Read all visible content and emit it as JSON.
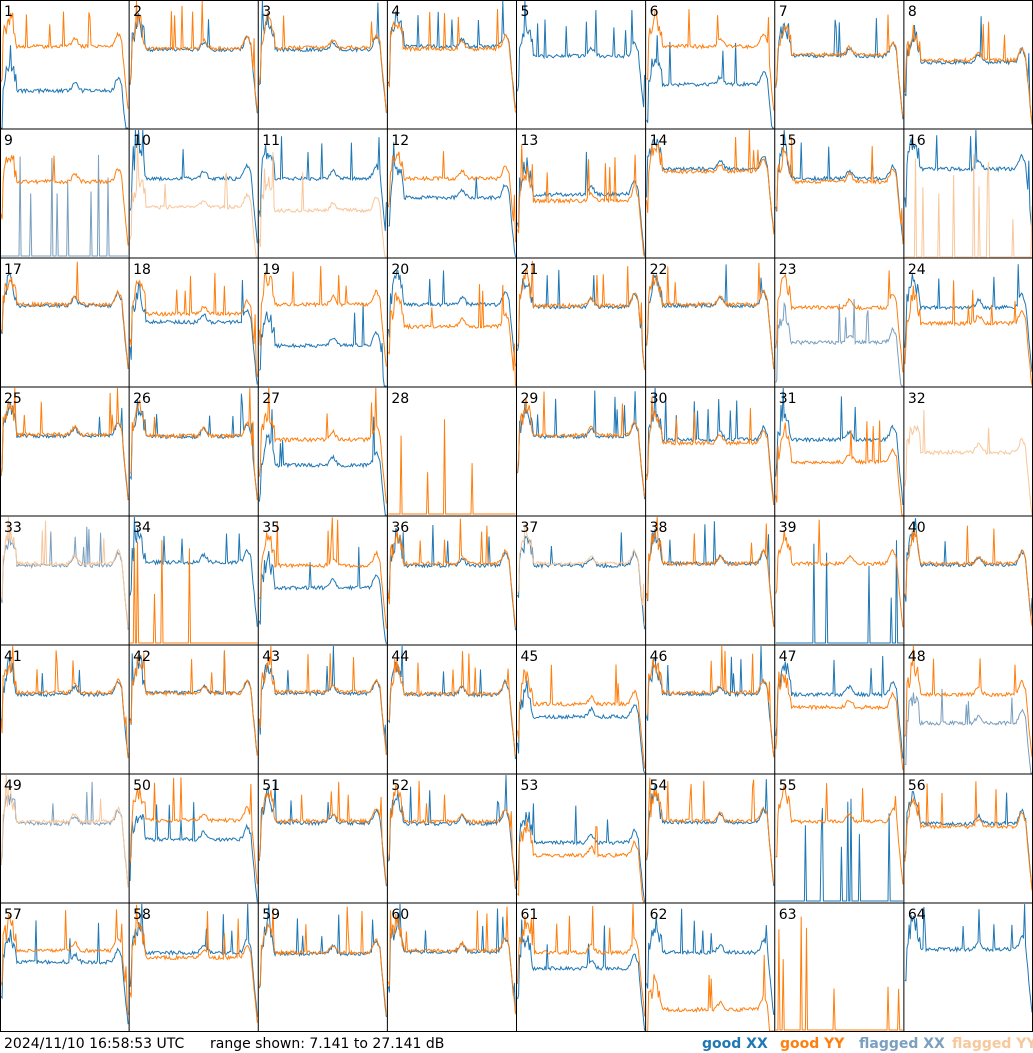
{
  "footer": {
    "timestamp": "2024/11/10 16:58:53 UTC",
    "range_text": "range shown: 7.141 to 27.141 dB"
  },
  "legend": [
    {
      "label": "good XX",
      "color": "#1f77b4"
    },
    {
      "label": "good YY",
      "color": "#ff7f0e"
    },
    {
      "label": "flagged XX",
      "color": "#7a9fbf"
    },
    {
      "label": "flagged YY",
      "color": "#f8c79b"
    }
  ],
  "colors": {
    "good_xx": "#1f77b4",
    "good_yy": "#ff7f0e",
    "flagged_xx": "#7a9fbf",
    "flagged_yy": "#f8c79b",
    "grid_line": "#000000"
  },
  "chart_data": {
    "type": "line",
    "grid": {
      "rows": 8,
      "cols": 8
    },
    "y_range_db": [
      7.141,
      27.141
    ],
    "panels": [
      {
        "id": "1",
        "xx": "good",
        "yy": "good",
        "xx_level": 13,
        "yy_level": 20
      },
      {
        "id": "2",
        "xx": "good",
        "yy": "good",
        "xx_level": 19.5,
        "yy_level": 19.7
      },
      {
        "id": "3",
        "xx": "good",
        "yy": "good",
        "xx_level": 19.5,
        "yy_level": 19.8
      },
      {
        "id": "4",
        "xx": "good",
        "yy": "good",
        "xx_level": 20,
        "yy_level": 19.6
      },
      {
        "id": "5",
        "xx": "good",
        "yy": "none",
        "xx_level": 18.5,
        "yy_level": 7.1
      },
      {
        "id": "6",
        "xx": "good",
        "yy": "good",
        "xx_level": 14,
        "yy_level": 20
      },
      {
        "id": "7",
        "xx": "good",
        "yy": "good",
        "xx_level": 18.5,
        "yy_level": 18.7
      },
      {
        "id": "8",
        "xx": "good",
        "yy": "good",
        "xx_level": 17.5,
        "yy_level": 17.8
      },
      {
        "id": "9",
        "xx": "flagged",
        "yy": "good",
        "xx_level": 7.3,
        "yy_level": 19
      },
      {
        "id": "10",
        "xx": "good",
        "yy": "flagged",
        "xx_level": 19.5,
        "yy_level": 15
      },
      {
        "id": "11",
        "xx": "good",
        "yy": "flagged",
        "xx_level": 19.5,
        "yy_level": 14.5
      },
      {
        "id": "12",
        "xx": "good",
        "yy": "good",
        "xx_level": 16.5,
        "yy_level": 19.5
      },
      {
        "id": "13",
        "xx": "good",
        "yy": "good",
        "xx_level": 17,
        "yy_level": 16
      },
      {
        "id": "14",
        "xx": "good",
        "yy": "good",
        "xx_level": 21,
        "yy_level": 20.6
      },
      {
        "id": "15",
        "xx": "good",
        "yy": "good",
        "xx_level": 19.5,
        "yy_level": 19
      },
      {
        "id": "16",
        "xx": "good",
        "yy": "flagged",
        "xx_level": 21,
        "yy_level": 7.1
      },
      {
        "id": "17",
        "xx": "good",
        "yy": "good",
        "xx_level": 19.8,
        "yy_level": 20
      },
      {
        "id": "18",
        "xx": "good",
        "yy": "good",
        "xx_level": 17.2,
        "yy_level": 18.5
      },
      {
        "id": "19",
        "xx": "good",
        "yy": "good",
        "xx_level": 13.5,
        "yy_level": 20
      },
      {
        "id": "20",
        "xx": "good",
        "yy": "good",
        "xx_level": 20,
        "yy_level": 16.5
      },
      {
        "id": "21",
        "xx": "good",
        "yy": "good",
        "xx_level": 19.6,
        "yy_level": 19.8
      },
      {
        "id": "22",
        "xx": "good",
        "yy": "good",
        "xx_level": 19.8,
        "yy_level": 20
      },
      {
        "id": "23",
        "xx": "flagged",
        "yy": "good",
        "xx_level": 14,
        "yy_level": 19.5
      },
      {
        "id": "24",
        "xx": "good",
        "yy": "good",
        "xx_level": 19.5,
        "yy_level": 17
      },
      {
        "id": "25",
        "xx": "good",
        "yy": "good",
        "xx_level": 19.6,
        "yy_level": 19.8
      },
      {
        "id": "26",
        "xx": "good",
        "yy": "good",
        "xx_level": 19.5,
        "yy_level": 19.6
      },
      {
        "id": "27",
        "xx": "good",
        "yy": "good",
        "xx_level": 15,
        "yy_level": 19
      },
      {
        "id": "28",
        "xx": "none",
        "yy": "good",
        "xx_level": 7.1,
        "yy_level": 7.3
      },
      {
        "id": "29",
        "xx": "good",
        "yy": "good",
        "xx_level": 19.5,
        "yy_level": 19.7
      },
      {
        "id": "30",
        "xx": "good",
        "yy": "good",
        "xx_level": 19,
        "yy_level": 18.5
      },
      {
        "id": "31",
        "xx": "good",
        "yy": "good",
        "xx_level": 19,
        "yy_level": 15.5
      },
      {
        "id": "32",
        "xx": "none",
        "yy": "flagged",
        "xx_level": 7.1,
        "yy_level": 17
      },
      {
        "id": "33",
        "xx": "flagged",
        "yy": "flagged",
        "xx_level": 19.5,
        "yy_level": 19.8
      },
      {
        "id": "34",
        "xx": "good",
        "yy": "good",
        "xx_level": 20,
        "yy_level": 7.3
      },
      {
        "id": "35",
        "xx": "good",
        "yy": "good",
        "xx_level": 16,
        "yy_level": 19.5
      },
      {
        "id": "36",
        "xx": "good",
        "yy": "good",
        "xx_level": 19.5,
        "yy_level": 19.8
      },
      {
        "id": "37",
        "xx": "good",
        "yy": "flagged",
        "xx_level": 19.5,
        "yy_level": 19.8
      },
      {
        "id": "38",
        "xx": "good",
        "yy": "good",
        "xx_level": 19.8,
        "yy_level": 19.8
      },
      {
        "id": "39",
        "xx": "good",
        "yy": "good",
        "xx_level": 7.3,
        "yy_level": 19.8
      },
      {
        "id": "40",
        "xx": "good",
        "yy": "good",
        "xx_level": 19.6,
        "yy_level": 19.8
      },
      {
        "id": "41",
        "xx": "good",
        "yy": "good",
        "xx_level": 19.5,
        "yy_level": 19.8
      },
      {
        "id": "42",
        "xx": "good",
        "yy": "good",
        "xx_level": 19.8,
        "yy_level": 19.7
      },
      {
        "id": "43",
        "xx": "good",
        "yy": "good",
        "xx_level": 19.7,
        "yy_level": 19.9
      },
      {
        "id": "44",
        "xx": "good",
        "yy": "good",
        "xx_level": 19.5,
        "yy_level": 19.6
      },
      {
        "id": "45",
        "xx": "good",
        "yy": "good",
        "xx_level": 16,
        "yy_level": 18
      },
      {
        "id": "46",
        "xx": "good",
        "yy": "good",
        "xx_level": 19.6,
        "yy_level": 19.8
      },
      {
        "id": "47",
        "xx": "good",
        "yy": "good",
        "xx_level": 19.5,
        "yy_level": 17.5
      },
      {
        "id": "48",
        "xx": "flagged",
        "yy": "good",
        "xx_level": 15,
        "yy_level": 19.5
      },
      {
        "id": "49",
        "xx": "flagged",
        "yy": "flagged",
        "xx_level": 19.5,
        "yy_level": 19.8
      },
      {
        "id": "50",
        "xx": "good",
        "yy": "good",
        "xx_level": 17,
        "yy_level": 20
      },
      {
        "id": "51",
        "xx": "good",
        "yy": "good",
        "xx_level": 19.6,
        "yy_level": 19.9
      },
      {
        "id": "52",
        "xx": "good",
        "yy": "good",
        "xx_level": 19.5,
        "yy_level": 19.8
      },
      {
        "id": "53",
        "xx": "good",
        "yy": "good",
        "xx_level": 16.5,
        "yy_level": 14.5
      },
      {
        "id": "54",
        "xx": "good",
        "yy": "good",
        "xx_level": 19.7,
        "yy_level": 19.9
      },
      {
        "id": "55",
        "xx": "good",
        "yy": "good",
        "xx_level": 7.3,
        "yy_level": 19.8
      },
      {
        "id": "56",
        "xx": "good",
        "yy": "good",
        "xx_level": 19.5,
        "yy_level": 19
      },
      {
        "id": "57",
        "xx": "good",
        "yy": "good",
        "xx_level": 18,
        "yy_level": 19.8
      },
      {
        "id": "58",
        "xx": "good",
        "yy": "good",
        "xx_level": 19.5,
        "yy_level": 18.7
      },
      {
        "id": "59",
        "xx": "good",
        "yy": "good",
        "xx_level": 19.3,
        "yy_level": 19.5
      },
      {
        "id": "60",
        "xx": "good",
        "yy": "good",
        "xx_level": 19.6,
        "yy_level": 19.8
      },
      {
        "id": "61",
        "xx": "good",
        "yy": "good",
        "xx_level": 17,
        "yy_level": 19.5
      },
      {
        "id": "62",
        "xx": "good",
        "yy": "good",
        "xx_level": 19.5,
        "yy_level": 10.5
      },
      {
        "id": "63",
        "xx": "none",
        "yy": "good",
        "xx_level": 7.1,
        "yy_level": 7.3
      },
      {
        "id": "64",
        "xx": "good",
        "yy": "none",
        "xx_level": 20,
        "yy_level": 7.1
      }
    ]
  }
}
